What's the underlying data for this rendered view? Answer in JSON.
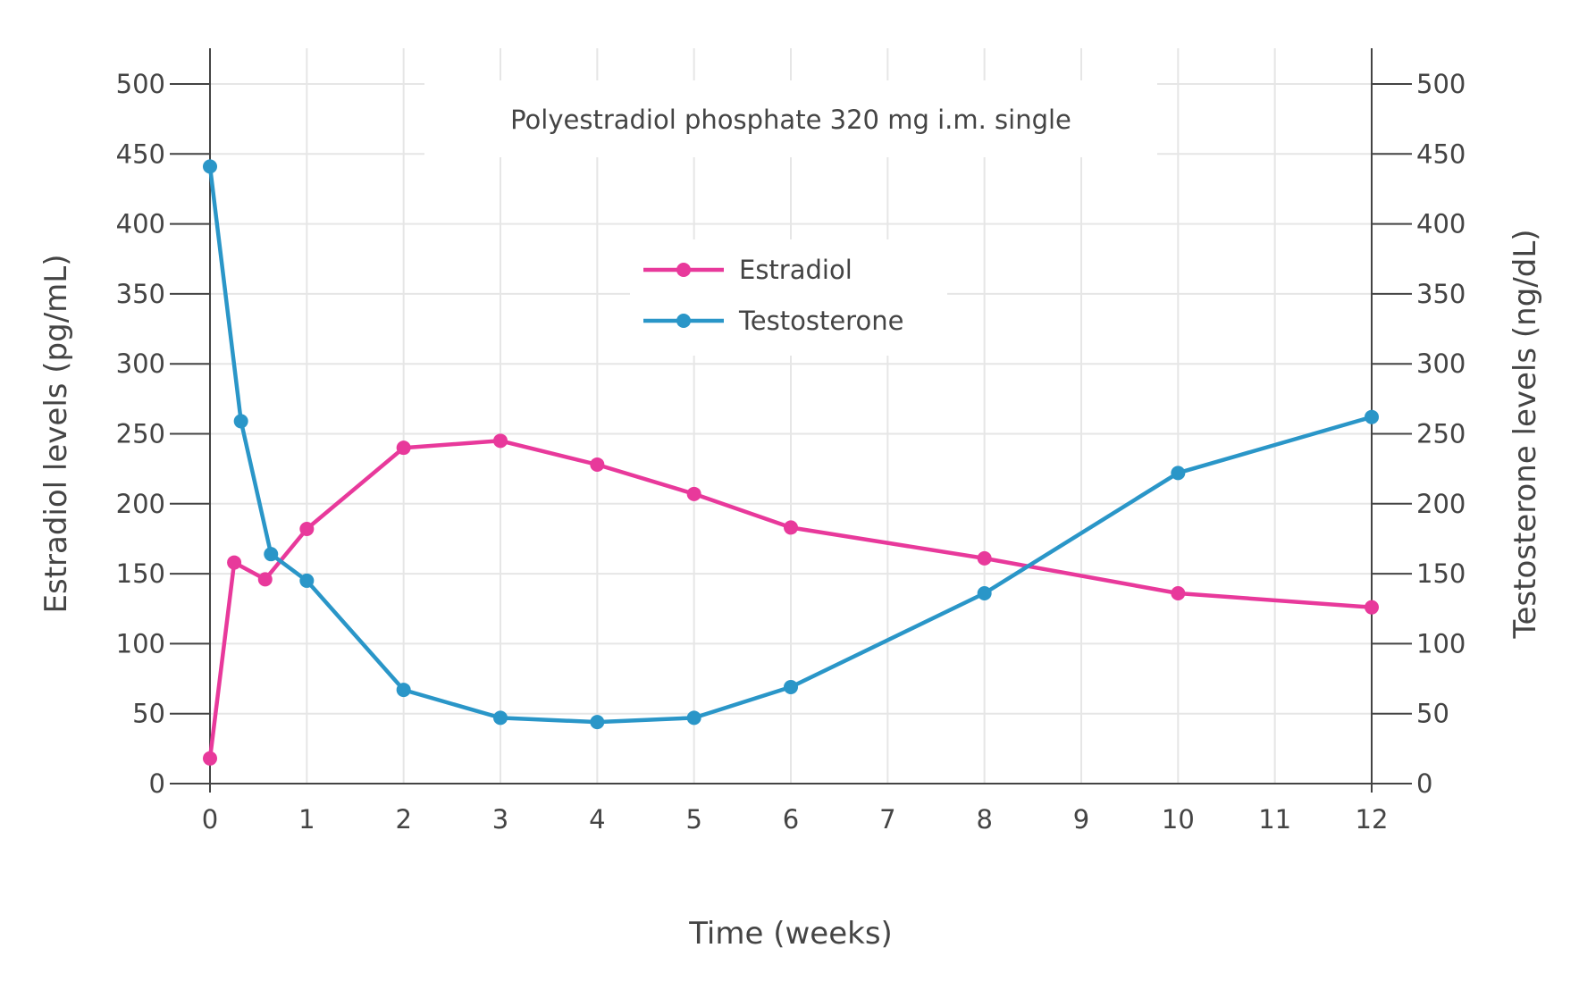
{
  "chart_data": {
    "type": "line",
    "title": "Polyestradiol phosphate 320 mg i.m. single",
    "xlabel": "Time (weeks)",
    "ylabel": "Estradiol levels (pg/mL)",
    "y2label": "Testosterone levels (ng/dL)",
    "xlim": [
      0,
      12
    ],
    "ylim": [
      0,
      500
    ],
    "y2lim": [
      0,
      500
    ],
    "x_ticks": [
      0,
      1,
      2,
      3,
      4,
      5,
      6,
      7,
      8,
      9,
      10,
      11,
      12
    ],
    "y_ticks": [
      0,
      50,
      100,
      150,
      200,
      250,
      300,
      350,
      400,
      450,
      500
    ],
    "grid": true,
    "legend_position": "top-center",
    "series": [
      {
        "name": "Estradiol",
        "axis": "left",
        "color": "#e8399b",
        "x": [
          0,
          0.25,
          0.57,
          1,
          2,
          3,
          4,
          5,
          6,
          8,
          10,
          12
        ],
        "values": [
          18,
          158,
          146,
          182,
          240,
          245,
          228,
          207,
          183,
          161,
          136,
          126
        ]
      },
      {
        "name": "Testosterone",
        "axis": "right",
        "color": "#2a96c8",
        "x": [
          0,
          0.32,
          0.63,
          1,
          2,
          3,
          4,
          5,
          6,
          8,
          10,
          12
        ],
        "values": [
          441,
          259,
          164,
          145,
          67,
          47,
          44,
          47,
          69,
          136,
          222,
          262
        ]
      }
    ]
  }
}
